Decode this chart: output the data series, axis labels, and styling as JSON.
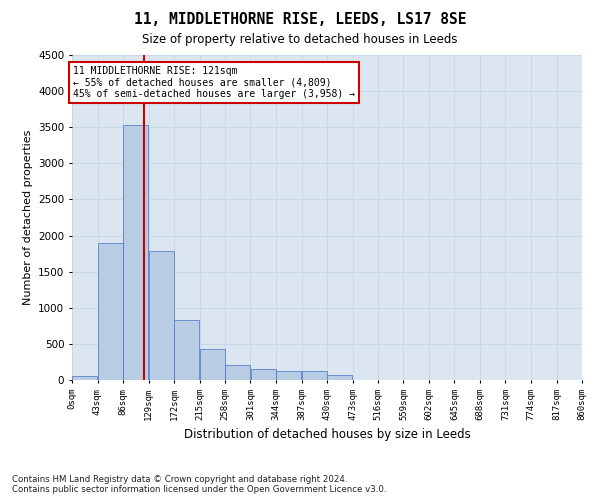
{
  "title": "11, MIDDLETHORNE RISE, LEEDS, LS17 8SE",
  "subtitle": "Size of property relative to detached houses in Leeds",
  "xlabel": "Distribution of detached houses by size in Leeds",
  "ylabel": "Number of detached properties",
  "footer_line1": "Contains HM Land Registry data © Crown copyright and database right 2024.",
  "footer_line2": "Contains public sector information licensed under the Open Government Licence v3.0.",
  "annotation_title": "11 MIDDLETHORNE RISE: 121sqm",
  "annotation_line1": "← 55% of detached houses are smaller (4,809)",
  "annotation_line2": "45% of semi-detached houses are larger (3,958) →",
  "bin_labels": [
    "0sqm",
    "43sqm",
    "86sqm",
    "129sqm",
    "172sqm",
    "215sqm",
    "258sqm",
    "301sqm",
    "344sqm",
    "387sqm",
    "430sqm",
    "473sqm",
    "516sqm",
    "559sqm",
    "602sqm",
    "645sqm",
    "688sqm",
    "731sqm",
    "774sqm",
    "817sqm",
    "860sqm"
  ],
  "bar_values": [
    50,
    1900,
    3530,
    1780,
    830,
    430,
    210,
    150,
    130,
    120,
    70,
    0,
    0,
    0,
    0,
    0,
    0,
    0,
    0,
    0
  ],
  "bar_color": "#b8cce4",
  "bar_edge_color": "#4472c4",
  "grid_color": "#c8d8e8",
  "background_color": "#dce6f1",
  "vline_x": 121,
  "vline_color": "#cc0000",
  "annotation_box_color": "#cc0000",
  "ylim": [
    0,
    4500
  ],
  "yticks": [
    0,
    500,
    1000,
    1500,
    2000,
    2500,
    3000,
    3500,
    4000,
    4500
  ],
  "bin_width": 43,
  "figwidth": 6.0,
  "figheight": 5.0,
  "dpi": 100
}
